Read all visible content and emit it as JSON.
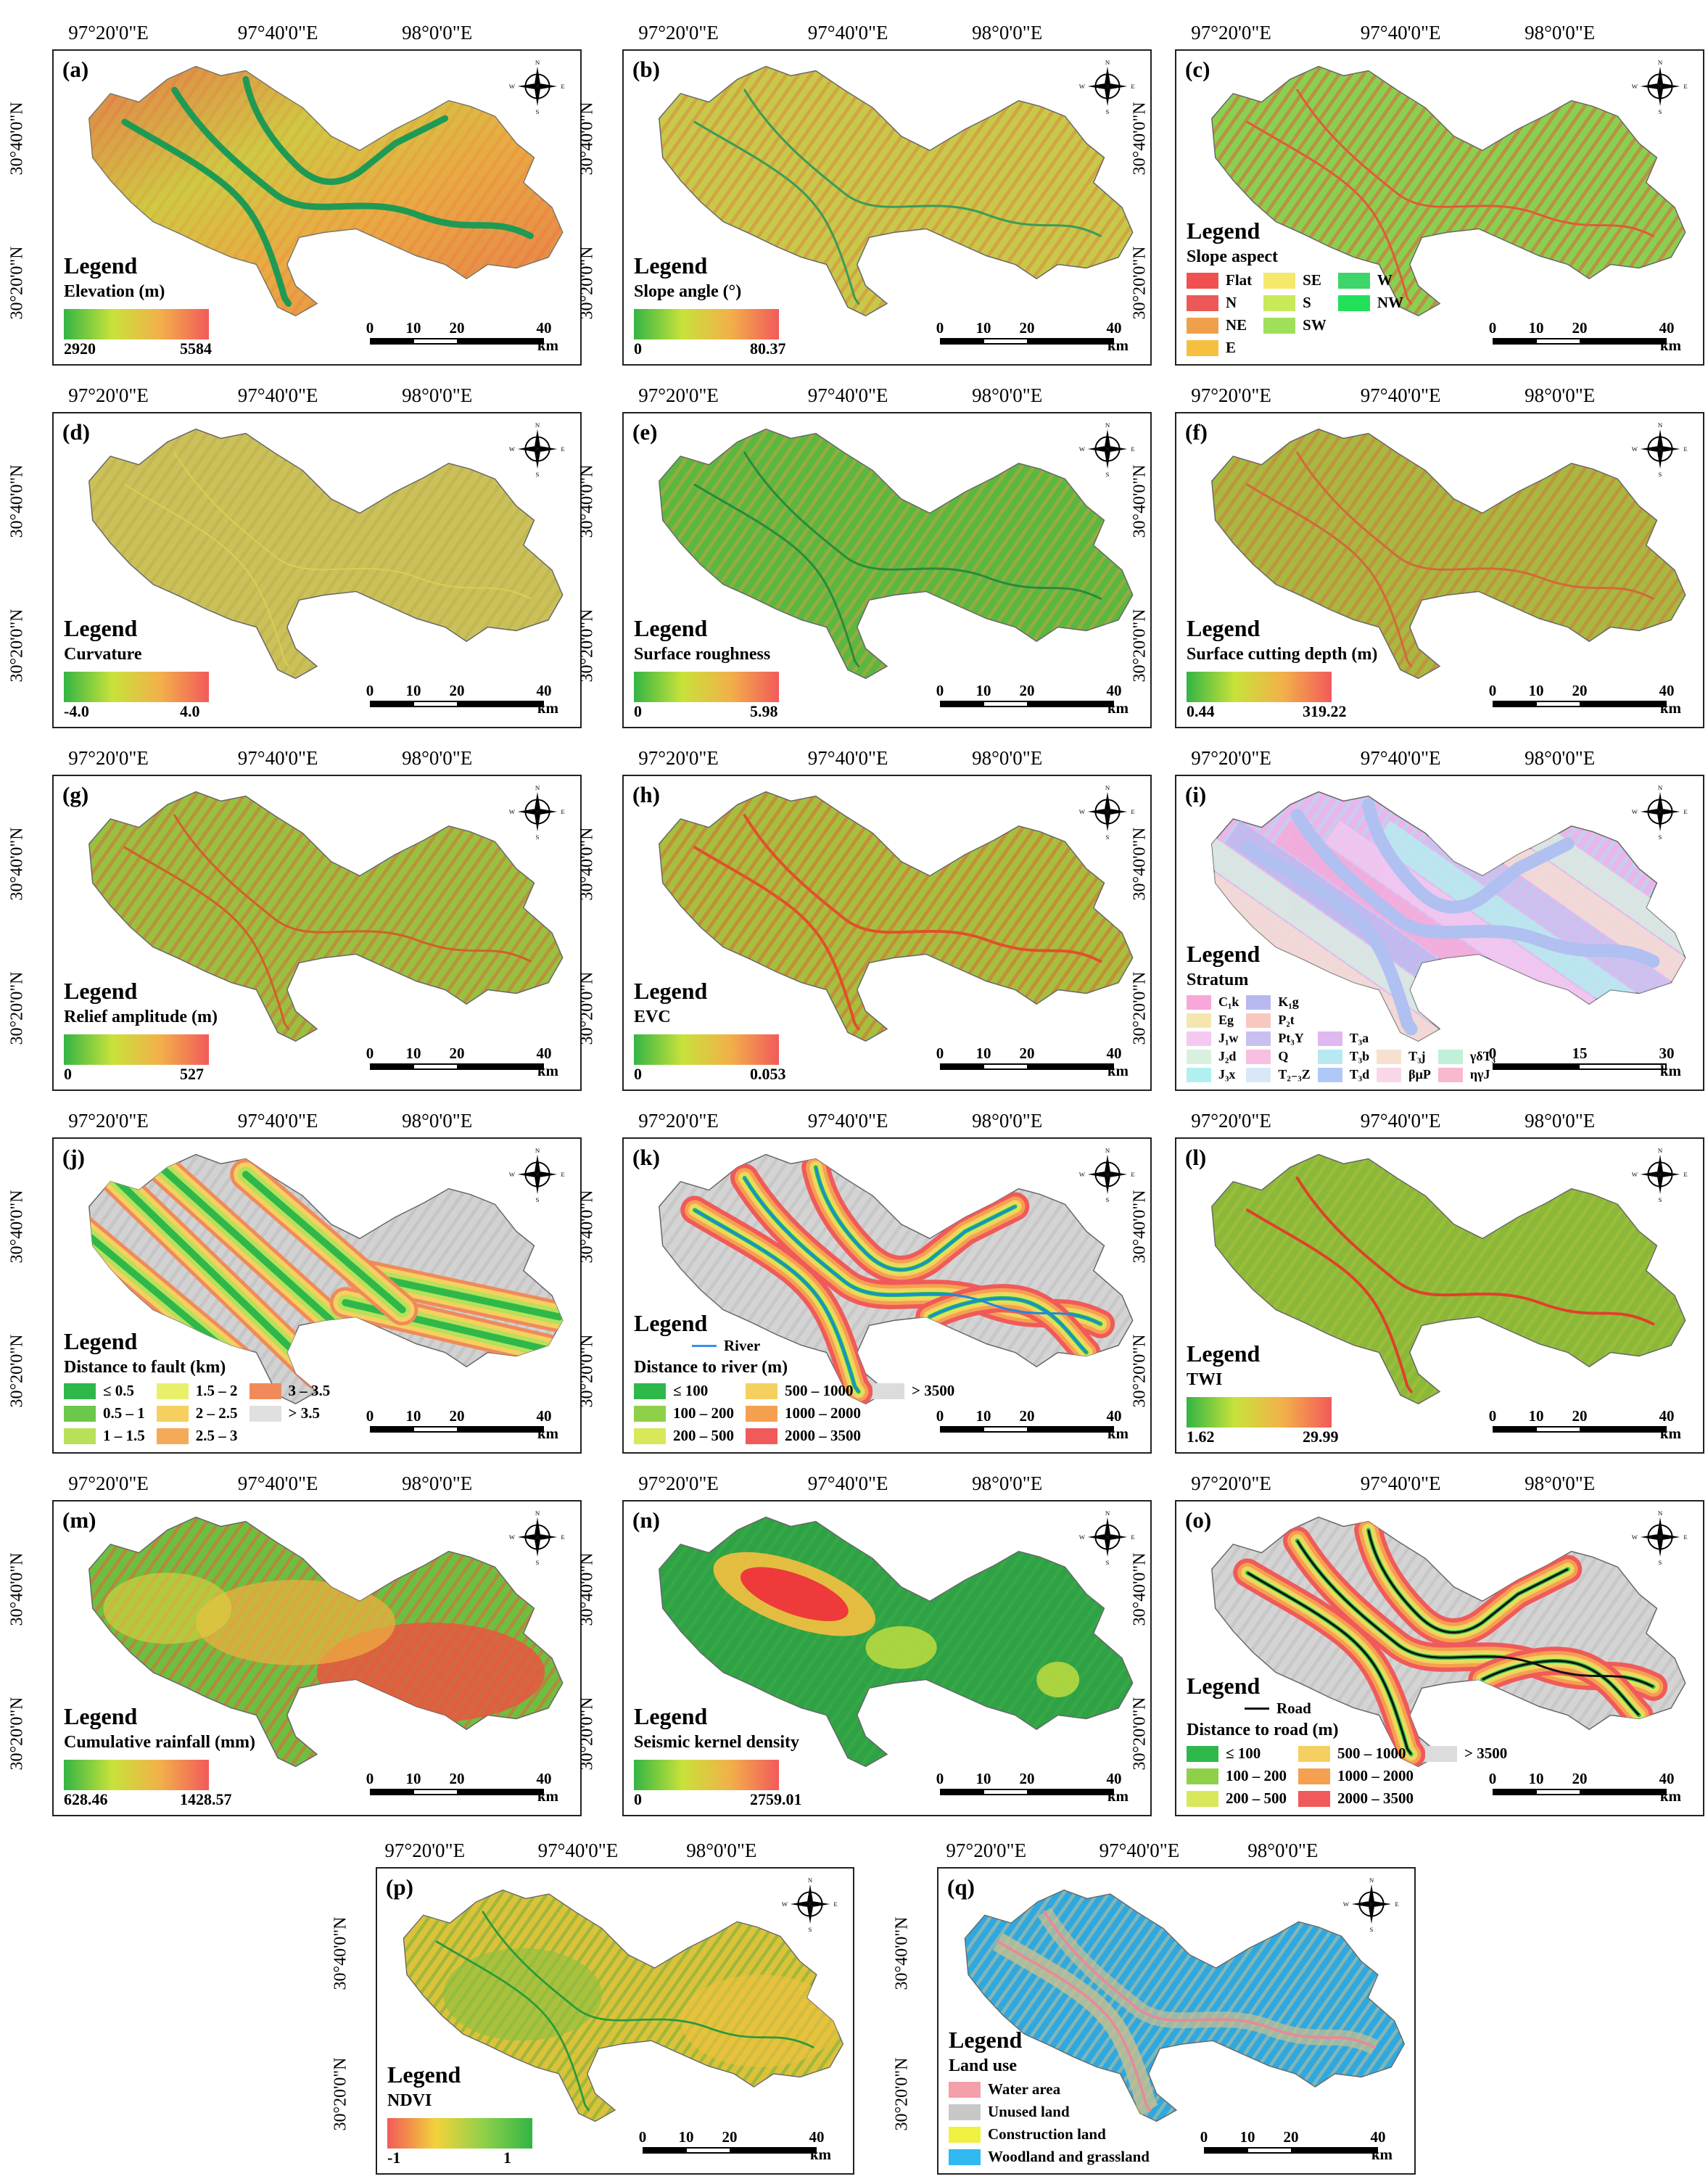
{
  "lon_ticks": [
    "97°20'0\"E",
    "97°40'0\"E",
    "98°0'0\"E"
  ],
  "lat_ticks": [
    "30°40'0\"N",
    "30°20'0\"N"
  ],
  "compass": {
    "n": "N",
    "s": "S",
    "e": "E",
    "w": "W"
  },
  "scale": {
    "ticks": [
      "0",
      "10",
      "20",
      "40"
    ],
    "unit": "km"
  },
  "scale_i": {
    "ticks": [
      "0",
      "15",
      "30"
    ],
    "unit": "km"
  },
  "legend_word": "Legend",
  "colors": {
    "ramp_green_red": [
      "#33b544",
      "#c8e23a",
      "#f2b04a",
      "#f25a5a"
    ],
    "ramp_red_green": [
      "#f25a5a",
      "#f2d23a",
      "#8fd04a",
      "#33b544"
    ]
  },
  "panels": [
    {
      "letter": "(a)",
      "type": "ramp",
      "title": "Elevation (m)",
      "min": "2920",
      "max": "5584"
    },
    {
      "letter": "(b)",
      "type": "ramp",
      "title": "Slope angle (°)",
      "min": "0",
      "max": "80.37"
    },
    {
      "letter": "(c)",
      "type": "classes",
      "title": "Slope aspect",
      "cols": 3,
      "classes": [
        {
          "label": "Flat",
          "color": "#f05050"
        },
        {
          "label": "SE",
          "color": "#f5e86a"
        },
        {
          "label": "W",
          "color": "#3ed66a"
        },
        {
          "label": "N",
          "color": "#ec5858"
        },
        {
          "label": "S",
          "color": "#c9e85a"
        },
        {
          "label": "NW",
          "color": "#22e05a"
        },
        {
          "label": "NE",
          "color": "#f0a04a"
        },
        {
          "label": "SW",
          "color": "#9fe05a"
        },
        {
          "label": "",
          "color": ""
        },
        {
          "label": "E",
          "color": "#f5c040"
        },
        {
          "label": "",
          "color": ""
        },
        {
          "label": "",
          "color": ""
        }
      ]
    },
    {
      "letter": "(d)",
      "type": "ramp",
      "title": "Curvature",
      "min": "-4.0",
      "max": "4.0"
    },
    {
      "letter": "(e)",
      "type": "ramp",
      "title": "Surface roughness",
      "min": "0",
      "max": "5.98"
    },
    {
      "letter": "(f)",
      "type": "ramp",
      "title": "Surface cutting depth (m)",
      "min": "0.44",
      "max": "319.22"
    },
    {
      "letter": "(g)",
      "type": "ramp",
      "title": "Relief amplitude (m)",
      "min": "0",
      "max": "527"
    },
    {
      "letter": "(h)",
      "type": "ramp",
      "title": "EVC",
      "min": "0",
      "max": "0.053"
    },
    {
      "letter": "(i)",
      "type": "classes",
      "title": "Stratum",
      "cols": 5,
      "classes": [
        {
          "label": "C₁k",
          "color": "#f7a8d8"
        },
        {
          "label": "K₁g",
          "color": "#b8b8f0"
        },
        {
          "label": "",
          "color": ""
        },
        {
          "label": "",
          "color": ""
        },
        {
          "label": "",
          "color": ""
        },
        {
          "label": "Eg",
          "color": "#f5e6b0"
        },
        {
          "label": "P₂t",
          "color": "#f8c8c0"
        },
        {
          "label": "",
          "color": ""
        },
        {
          "label": "",
          "color": ""
        },
        {
          "label": "",
          "color": ""
        },
        {
          "label": "J₁w",
          "color": "#f4c8f0"
        },
        {
          "label": "Pt₃Y",
          "color": "#c8c0f0"
        },
        {
          "label": "T₃a",
          "color": "#e0b8f0"
        },
        {
          "label": "",
          "color": ""
        },
        {
          "label": "",
          "color": ""
        },
        {
          "label": "J₂d",
          "color": "#d8f0e0"
        },
        {
          "label": "Q",
          "color": "#f8c0e0"
        },
        {
          "label": "T₃b",
          "color": "#b8e8f0"
        },
        {
          "label": "T₃j",
          "color": "#f8e0d0"
        },
        {
          "label": "γδT₃",
          "color": "#c0f0d8"
        },
        {
          "label": "J₃x",
          "color": "#b0f0f0"
        },
        {
          "label": "T₂₋₃Z",
          "color": "#d8e8f8"
        },
        {
          "label": "T₃d",
          "color": "#b0c8f8"
        },
        {
          "label": "βμP",
          "color": "#f8d8e8"
        },
        {
          "label": "ηγJ",
          "color": "#f8b8d0"
        }
      ]
    },
    {
      "letter": "(j)",
      "type": "classes",
      "title": "Distance to fault (km)",
      "cols": 3,
      "classes": [
        {
          "label": "≤ 0.5",
          "color": "#2fb84a"
        },
        {
          "label": "1.5 – 2",
          "color": "#e8f06a"
        },
        {
          "label": "3 – 3.5",
          "color": "#f08a5a"
        },
        {
          "label": "0.5 – 1",
          "color": "#6cc84a"
        },
        {
          "label": "2 – 2.5",
          "color": "#f5d060"
        },
        {
          "label": "> 3.5",
          "color": "#e0e0e0"
        },
        {
          "label": "1 – 1.5",
          "color": "#b8e05a"
        },
        {
          "label": "2.5 – 3",
          "color": "#f5aa5a"
        },
        {
          "label": "",
          "color": ""
        }
      ]
    },
    {
      "letter": "(k)",
      "type": "classes",
      "title": "Distance to river (m)",
      "line": "River",
      "line_color": "#3a8ee8",
      "cols": 3,
      "classes": [
        {
          "label": "≤ 100",
          "color": "#2fb84a"
        },
        {
          "label": "500 – 1000",
          "color": "#f5d060"
        },
        {
          "label": "> 3500",
          "color": "#dcdcdc"
        },
        {
          "label": "100 – 200",
          "color": "#8fd04a"
        },
        {
          "label": "1000 – 2000",
          "color": "#f5a050"
        },
        {
          "label": "",
          "color": ""
        },
        {
          "label": "200 – 500",
          "color": "#d8e85a"
        },
        {
          "label": "2000 – 3500",
          "color": "#f05a5a"
        },
        {
          "label": "",
          "color": ""
        }
      ]
    },
    {
      "letter": "(l)",
      "type": "ramp",
      "title": "TWI",
      "min": "1.62",
      "max": "29.99"
    },
    {
      "letter": "(m)",
      "type": "ramp",
      "title": "Cumulative rainfall (mm)",
      "min": "628.46",
      "max": "1428.57"
    },
    {
      "letter": "(n)",
      "type": "ramp",
      "title": "Seismic kernel density",
      "min": "0",
      "max": "2759.01"
    },
    {
      "letter": "(o)",
      "type": "classes",
      "title": "Distance to road (m)",
      "line": "Road",
      "line_color": "#111111",
      "cols": 3,
      "classes": [
        {
          "label": "≤ 100",
          "color": "#2fb84a"
        },
        {
          "label": "500 – 1000",
          "color": "#f5d060"
        },
        {
          "label": "> 3500",
          "color": "#dcdcdc"
        },
        {
          "label": "100 – 200",
          "color": "#8fd04a"
        },
        {
          "label": "1000 – 2000",
          "color": "#f5a050"
        },
        {
          "label": "",
          "color": ""
        },
        {
          "label": "200 – 500",
          "color": "#d8e85a"
        },
        {
          "label": "2000 – 3500",
          "color": "#f05a5a"
        },
        {
          "label": "",
          "color": ""
        }
      ]
    },
    {
      "letter": "(p)",
      "type": "ramp_rev",
      "title": "NDVI",
      "min": "-1",
      "max": "1"
    },
    {
      "letter": "(q)",
      "type": "classes",
      "title": "Land use",
      "cols": 1,
      "classes": [
        {
          "label": "Water area",
          "color": "#f4a0a8"
        },
        {
          "label": "Unused land",
          "color": "#c8c8c8"
        },
        {
          "label": "Construction land",
          "color": "#f0f040"
        },
        {
          "label": "Woodland and grassland",
          "color": "#30b8f0"
        }
      ]
    }
  ]
}
